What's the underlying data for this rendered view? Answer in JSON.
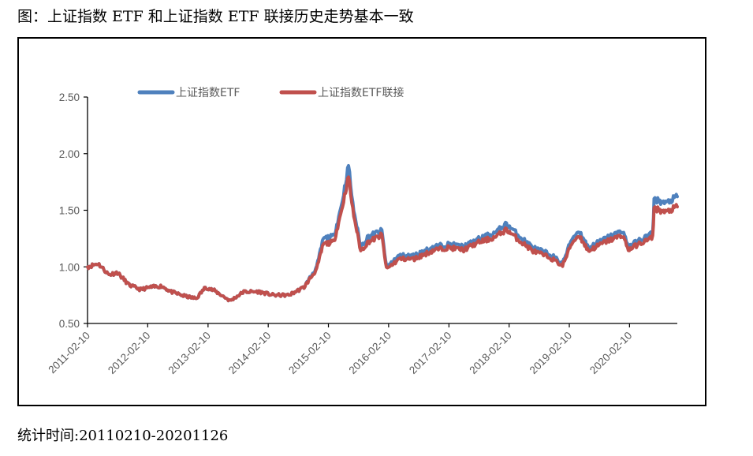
{
  "figure": {
    "title": "图：上证指数 ETF 和上证指数 ETF 联接历史走势基本一致",
    "footnote": "统计时间:20110210-20201126"
  },
  "chart_data": {
    "type": "line",
    "title": "",
    "xlabel": "",
    "ylabel": "",
    "ylim": [
      0.5,
      2.5
    ],
    "yticks": [
      "0.50",
      "1.00",
      "1.50",
      "2.00",
      "2.50"
    ],
    "xticks": [
      "2011-02-10",
      "2012-02-10",
      "2013-02-10",
      "2014-02-10",
      "2015-02-10",
      "2016-02-10",
      "2017-02-10",
      "2018-02-10",
      "2019-02-10",
      "2020-02-10"
    ],
    "grid": false,
    "legend": "top-left",
    "series": [
      {
        "name": "上证指数ETF",
        "color": "#4F81BD",
        "points": [
          [
            "2011-02-10",
            1.0
          ],
          [
            "2011-04-15",
            1.03
          ],
          [
            "2011-06-20",
            0.93
          ],
          [
            "2011-08-10",
            0.95
          ],
          [
            "2011-10-20",
            0.84
          ],
          [
            "2011-12-28",
            0.8
          ],
          [
            "2012-02-28",
            0.82
          ],
          [
            "2012-05-05",
            0.83
          ],
          [
            "2012-07-01",
            0.78
          ],
          [
            "2012-09-25",
            0.74
          ],
          [
            "2012-12-01",
            0.72
          ],
          [
            "2013-01-25",
            0.82
          ],
          [
            "2013-03-20",
            0.79
          ],
          [
            "2013-06-25",
            0.7
          ],
          [
            "2013-09-15",
            0.78
          ],
          [
            "2013-12-15",
            0.78
          ],
          [
            "2014-03-15",
            0.75
          ],
          [
            "2014-06-15",
            0.75
          ],
          [
            "2014-09-15",
            0.82
          ],
          [
            "2014-12-01",
            1.0
          ],
          [
            "2015-01-10",
            1.25
          ],
          [
            "2015-03-15",
            1.27
          ],
          [
            "2015-05-01",
            1.55
          ],
          [
            "2015-06-12",
            1.9
          ],
          [
            "2015-07-08",
            1.55
          ],
          [
            "2015-08-25",
            1.18
          ],
          [
            "2015-10-10",
            1.27
          ],
          [
            "2015-12-31",
            1.32
          ],
          [
            "2016-01-28",
            1.0
          ],
          [
            "2016-04-15",
            1.1
          ],
          [
            "2016-07-15",
            1.1
          ],
          [
            "2016-11-15",
            1.18
          ],
          [
            "2017-02-10",
            1.2
          ],
          [
            "2017-05-10",
            1.18
          ],
          [
            "2017-08-15",
            1.25
          ],
          [
            "2017-11-15",
            1.3
          ],
          [
            "2018-01-25",
            1.38
          ],
          [
            "2018-04-15",
            1.27
          ],
          [
            "2018-07-05",
            1.17
          ],
          [
            "2018-10-18",
            1.11
          ],
          [
            "2018-12-31",
            1.03
          ],
          [
            "2019-02-25",
            1.25
          ],
          [
            "2019-04-10",
            1.32
          ],
          [
            "2019-06-06",
            1.17
          ],
          [
            "2019-09-15",
            1.25
          ],
          [
            "2019-12-31",
            1.32
          ],
          [
            "2020-02-03",
            1.18
          ],
          [
            "2020-03-23",
            1.22
          ],
          [
            "2020-06-30",
            1.3
          ],
          [
            "2020-07-08",
            1.6
          ],
          [
            "2020-09-15",
            1.56
          ],
          [
            "2020-11-26",
            1.62
          ]
        ]
      },
      {
        "name": "上证指数ETF联接",
        "color": "#C0504D",
        "points": [
          [
            "2011-02-10",
            1.0
          ],
          [
            "2011-04-15",
            1.03
          ],
          [
            "2011-06-20",
            0.93
          ],
          [
            "2011-08-10",
            0.95
          ],
          [
            "2011-10-20",
            0.84
          ],
          [
            "2011-12-28",
            0.8
          ],
          [
            "2012-02-28",
            0.82
          ],
          [
            "2012-05-05",
            0.83
          ],
          [
            "2012-07-01",
            0.78
          ],
          [
            "2012-09-25",
            0.74
          ],
          [
            "2012-12-01",
            0.72
          ],
          [
            "2013-01-25",
            0.82
          ],
          [
            "2013-03-20",
            0.79
          ],
          [
            "2013-06-25",
            0.7
          ],
          [
            "2013-09-15",
            0.78
          ],
          [
            "2013-12-15",
            0.78
          ],
          [
            "2014-03-15",
            0.75
          ],
          [
            "2014-06-15",
            0.75
          ],
          [
            "2014-09-15",
            0.82
          ],
          [
            "2014-12-01",
            0.98
          ],
          [
            "2015-01-10",
            1.2
          ],
          [
            "2015-03-15",
            1.22
          ],
          [
            "2015-05-01",
            1.5
          ],
          [
            "2015-06-12",
            1.8
          ],
          [
            "2015-07-08",
            1.5
          ],
          [
            "2015-08-25",
            1.14
          ],
          [
            "2015-10-10",
            1.22
          ],
          [
            "2015-12-31",
            1.28
          ],
          [
            "2016-01-28",
            0.98
          ],
          [
            "2016-04-15",
            1.07
          ],
          [
            "2016-07-15",
            1.07
          ],
          [
            "2016-11-15",
            1.15
          ],
          [
            "2017-02-10",
            1.17
          ],
          [
            "2017-05-10",
            1.15
          ],
          [
            "2017-08-15",
            1.22
          ],
          [
            "2017-11-15",
            1.26
          ],
          [
            "2018-01-25",
            1.33
          ],
          [
            "2018-04-15",
            1.23
          ],
          [
            "2018-07-05",
            1.14
          ],
          [
            "2018-10-18",
            1.08
          ],
          [
            "2018-12-31",
            1.01
          ],
          [
            "2019-02-25",
            1.21
          ],
          [
            "2019-04-10",
            1.28
          ],
          [
            "2019-06-06",
            1.14
          ],
          [
            "2019-09-15",
            1.22
          ],
          [
            "2019-12-31",
            1.28
          ],
          [
            "2020-02-03",
            1.15
          ],
          [
            "2020-03-23",
            1.19
          ],
          [
            "2020-06-30",
            1.26
          ],
          [
            "2020-07-08",
            1.52
          ],
          [
            "2020-09-15",
            1.48
          ],
          [
            "2020-11-26",
            1.53
          ]
        ]
      }
    ]
  }
}
